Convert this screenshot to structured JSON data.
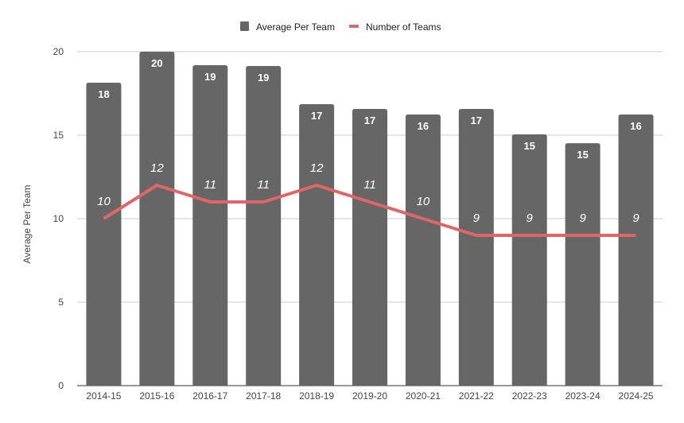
{
  "chart_data": {
    "type": "bar",
    "title": "",
    "xlabel": "",
    "ylabel": "Average Per Team",
    "ylim": [
      0,
      20
    ],
    "yticks": [
      "0",
      "5",
      "10",
      "15",
      "20"
    ],
    "grid": true,
    "legend_position": "top",
    "categories": [
      "2014-15",
      "2015-16",
      "2016-17",
      "2017-18",
      "2018-19",
      "2019-20",
      "2020-21",
      "2021-22",
      "2022-23",
      "2023-24",
      "2024-25"
    ],
    "series": [
      {
        "name": "Average Per Team",
        "type": "bar",
        "color": "#666666",
        "values": [
          18.14,
          20.0,
          19.19,
          19.14,
          16.86,
          16.57,
          16.24,
          16.57,
          15.05,
          14.52,
          16.24
        ],
        "labels": [
          "18",
          "20",
          "19",
          "19",
          "17",
          "17",
          "16",
          "17",
          "15",
          "15",
          "16"
        ]
      },
      {
        "name": "Number of Teams",
        "type": "line",
        "color": "#e06666",
        "values": [
          10,
          12,
          11,
          11,
          12,
          11,
          10,
          9,
          9,
          9,
          9
        ],
        "labels": [
          "10",
          "12",
          "11",
          "11",
          "12",
          "11",
          "10",
          "9",
          "9",
          "9",
          "9"
        ]
      }
    ]
  }
}
